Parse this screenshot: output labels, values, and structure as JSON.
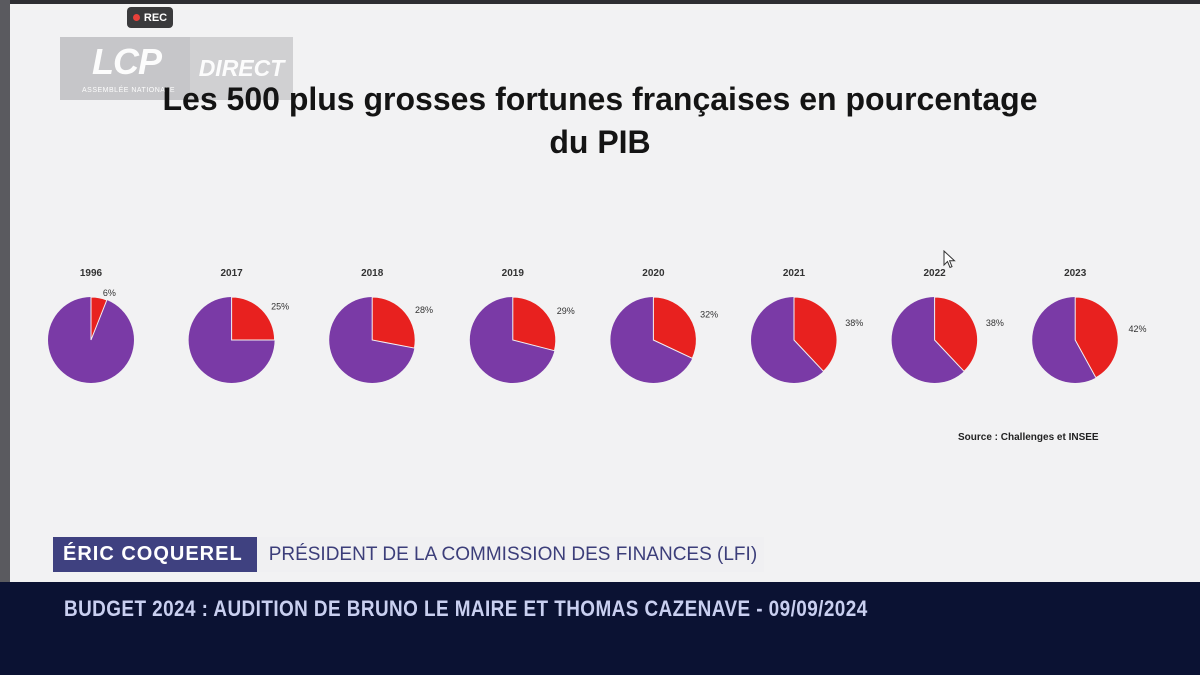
{
  "overlay": {
    "rec_label": "REC",
    "channel_logo": "LCP",
    "channel_sub": "ASSEMBLÉE NATIONALE",
    "live_label": "DIRECT"
  },
  "chart_data": {
    "type": "pie",
    "title": "Les 500 plus grosses fortunes françaises en pourcentage du PIB",
    "title_line1": "Les 500 plus grosses fortunes françaises en pourcentage",
    "title_line2": "du PIB",
    "categories": [
      "1996",
      "2017",
      "2018",
      "2019",
      "2020",
      "2021",
      "2022",
      "2023"
    ],
    "values": [
      6,
      25,
      28,
      29,
      32,
      38,
      38,
      42
    ],
    "labels": [
      "6%",
      "25%",
      "28%",
      "29%",
      "32%",
      "38%",
      "38%",
      "42%"
    ],
    "colors": {
      "share": "#e8211f",
      "rest": "#7a3aa6"
    },
    "source": "Source : Challenges et INSEE"
  },
  "lower_third": {
    "name": "ÉRIC  COQUEREL",
    "role": "PRÉSIDENT DE LA COMMISSION DES FINANCES (LFI)"
  },
  "banner": {
    "text": "BUDGET 2024 : AUDITION DE BRUNO LE MAIRE ET THOMAS CAZENAVE  - 09/09/2024"
  }
}
